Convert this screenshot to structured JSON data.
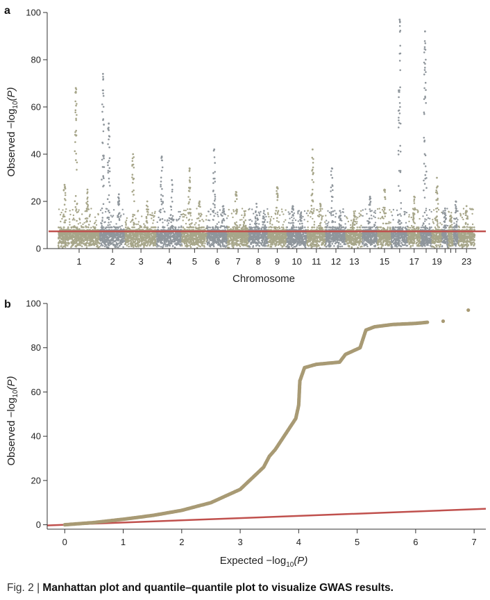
{
  "figure": {
    "caption_label": "Fig. 2 | ",
    "caption_title": "Manhattan plot and quantile–quantile plot to visualize GWAS results."
  },
  "chart_data": [
    {
      "panel": "a",
      "type": "scatter",
      "subtype": "manhattan",
      "xlabel": "Chromosome",
      "ylabel_parts": [
        "Observed −log",
        "10",
        "(P)"
      ],
      "ylim": [
        0,
        100
      ],
      "yticks": [
        0,
        20,
        40,
        60,
        80,
        100
      ],
      "x_tick_labels": [
        "1",
        "2",
        "3",
        "4",
        "5",
        "6",
        "7",
        "8",
        "9",
        "10",
        "11",
        "12",
        "13",
        "15",
        "17",
        "19",
        "23"
      ],
      "significance_threshold": 7.3,
      "threshold_color": "#c0504d",
      "colors": [
        "#a7a68a",
        "#8f969c"
      ],
      "chromosomes": [
        {
          "chr": "1",
          "peaks": [
            [
              0.15,
              27
            ],
            [
              0.42,
              68
            ],
            [
              0.7,
              25
            ]
          ]
        },
        {
          "chr": "2",
          "peaks": [
            [
              0.12,
              74
            ],
            [
              0.35,
              53
            ],
            [
              0.75,
              23
            ]
          ]
        },
        {
          "chr": "3",
          "peaks": [
            [
              0.25,
              40
            ],
            [
              0.7,
              20
            ]
          ]
        },
        {
          "chr": "4",
          "peaks": [
            [
              0.2,
              39
            ],
            [
              0.6,
              29
            ]
          ]
        },
        {
          "chr": "5",
          "peaks": [
            [
              0.3,
              34
            ],
            [
              0.7,
              20
            ]
          ]
        },
        {
          "chr": "6",
          "peaks": [
            [
              0.35,
              42
            ],
            [
              0.8,
              18
            ]
          ]
        },
        {
          "chr": "7",
          "peaks": [
            [
              0.4,
              24
            ],
            [
              0.8,
              14
            ]
          ]
        },
        {
          "chr": "8",
          "peaks": [
            [
              0.4,
              19
            ],
            [
              0.8,
              16
            ]
          ]
        },
        {
          "chr": "9",
          "peaks": [
            [
              0.5,
              26
            ]
          ]
        },
        {
          "chr": "10",
          "peaks": [
            [
              0.3,
              18
            ],
            [
              0.7,
              15
            ]
          ]
        },
        {
          "chr": "11",
          "peaks": [
            [
              0.3,
              42
            ],
            [
              0.7,
              19
            ]
          ]
        },
        {
          "chr": "12",
          "peaks": [
            [
              0.3,
              34
            ],
            [
              0.7,
              16
            ]
          ]
        },
        {
          "chr": "13",
          "peaks": [
            [
              0.5,
              15
            ]
          ]
        },
        {
          "chr": "14",
          "peaks": [
            [
              0.5,
              22
            ]
          ]
        },
        {
          "chr": "15",
          "peaks": [
            [
              0.5,
              25
            ]
          ]
        },
        {
          "chr": "16",
          "peaks": [
            [
              0.5,
              97
            ]
          ]
        },
        {
          "chr": "17",
          "peaks": [
            [
              0.5,
              22
            ]
          ]
        },
        {
          "chr": "18",
          "peaks": [
            [
              0.4,
              92
            ]
          ]
        },
        {
          "chr": "19",
          "peaks": [
            [
              0.5,
              30
            ]
          ]
        },
        {
          "chr": "20",
          "peaks": [
            [
              0.5,
              17
            ]
          ]
        },
        {
          "chr": "21",
          "peaks": [
            [
              0.5,
              14
            ]
          ]
        },
        {
          "chr": "22",
          "peaks": [
            [
              0.5,
              20
            ]
          ]
        },
        {
          "chr": "23",
          "peaks": [
            [
              0.5,
              18
            ]
          ]
        }
      ]
    },
    {
      "panel": "b",
      "type": "scatter",
      "subtype": "qq",
      "xlabel_parts": [
        "Expected −log",
        "10",
        "(P)"
      ],
      "ylabel_parts": [
        "Observed −log",
        "10",
        "(P)"
      ],
      "xlim": [
        -0.3,
        7.2
      ],
      "ylim": [
        -2,
        100
      ],
      "xticks": [
        0,
        1,
        2,
        3,
        4,
        5,
        6,
        7
      ],
      "yticks": [
        0,
        20,
        40,
        60,
        80,
        100
      ],
      "point_color": "#a89a74",
      "reference_line_color": "#c0504d",
      "reference_line": [
        [
          -0.3,
          -0.3
        ],
        [
          7.2,
          7.2
        ]
      ],
      "observed_curve": [
        [
          0,
          0
        ],
        [
          0.5,
          1
        ],
        [
          1,
          2.5
        ],
        [
          1.5,
          4.2
        ],
        [
          2,
          6.5
        ],
        [
          2.5,
          10
        ],
        [
          3,
          16
        ],
        [
          3.2,
          21
        ],
        [
          3.4,
          26
        ],
        [
          3.5,
          31
        ],
        [
          3.6,
          34
        ],
        [
          3.7,
          38
        ],
        [
          3.85,
          44
        ],
        [
          3.95,
          48
        ],
        [
          4.0,
          54
        ],
        [
          4.02,
          65
        ],
        [
          4.1,
          71
        ],
        [
          4.3,
          72.5
        ],
        [
          4.7,
          73.5
        ],
        [
          4.8,
          77
        ],
        [
          5.05,
          80
        ],
        [
          5.1,
          84
        ],
        [
          5.15,
          88
        ],
        [
          5.3,
          89.5
        ],
        [
          5.6,
          90.5
        ],
        [
          6.0,
          91
        ],
        [
          6.2,
          91.5
        ]
      ],
      "outlier_points": [
        [
          6.47,
          92
        ],
        [
          6.9,
          97
        ]
      ]
    }
  ]
}
